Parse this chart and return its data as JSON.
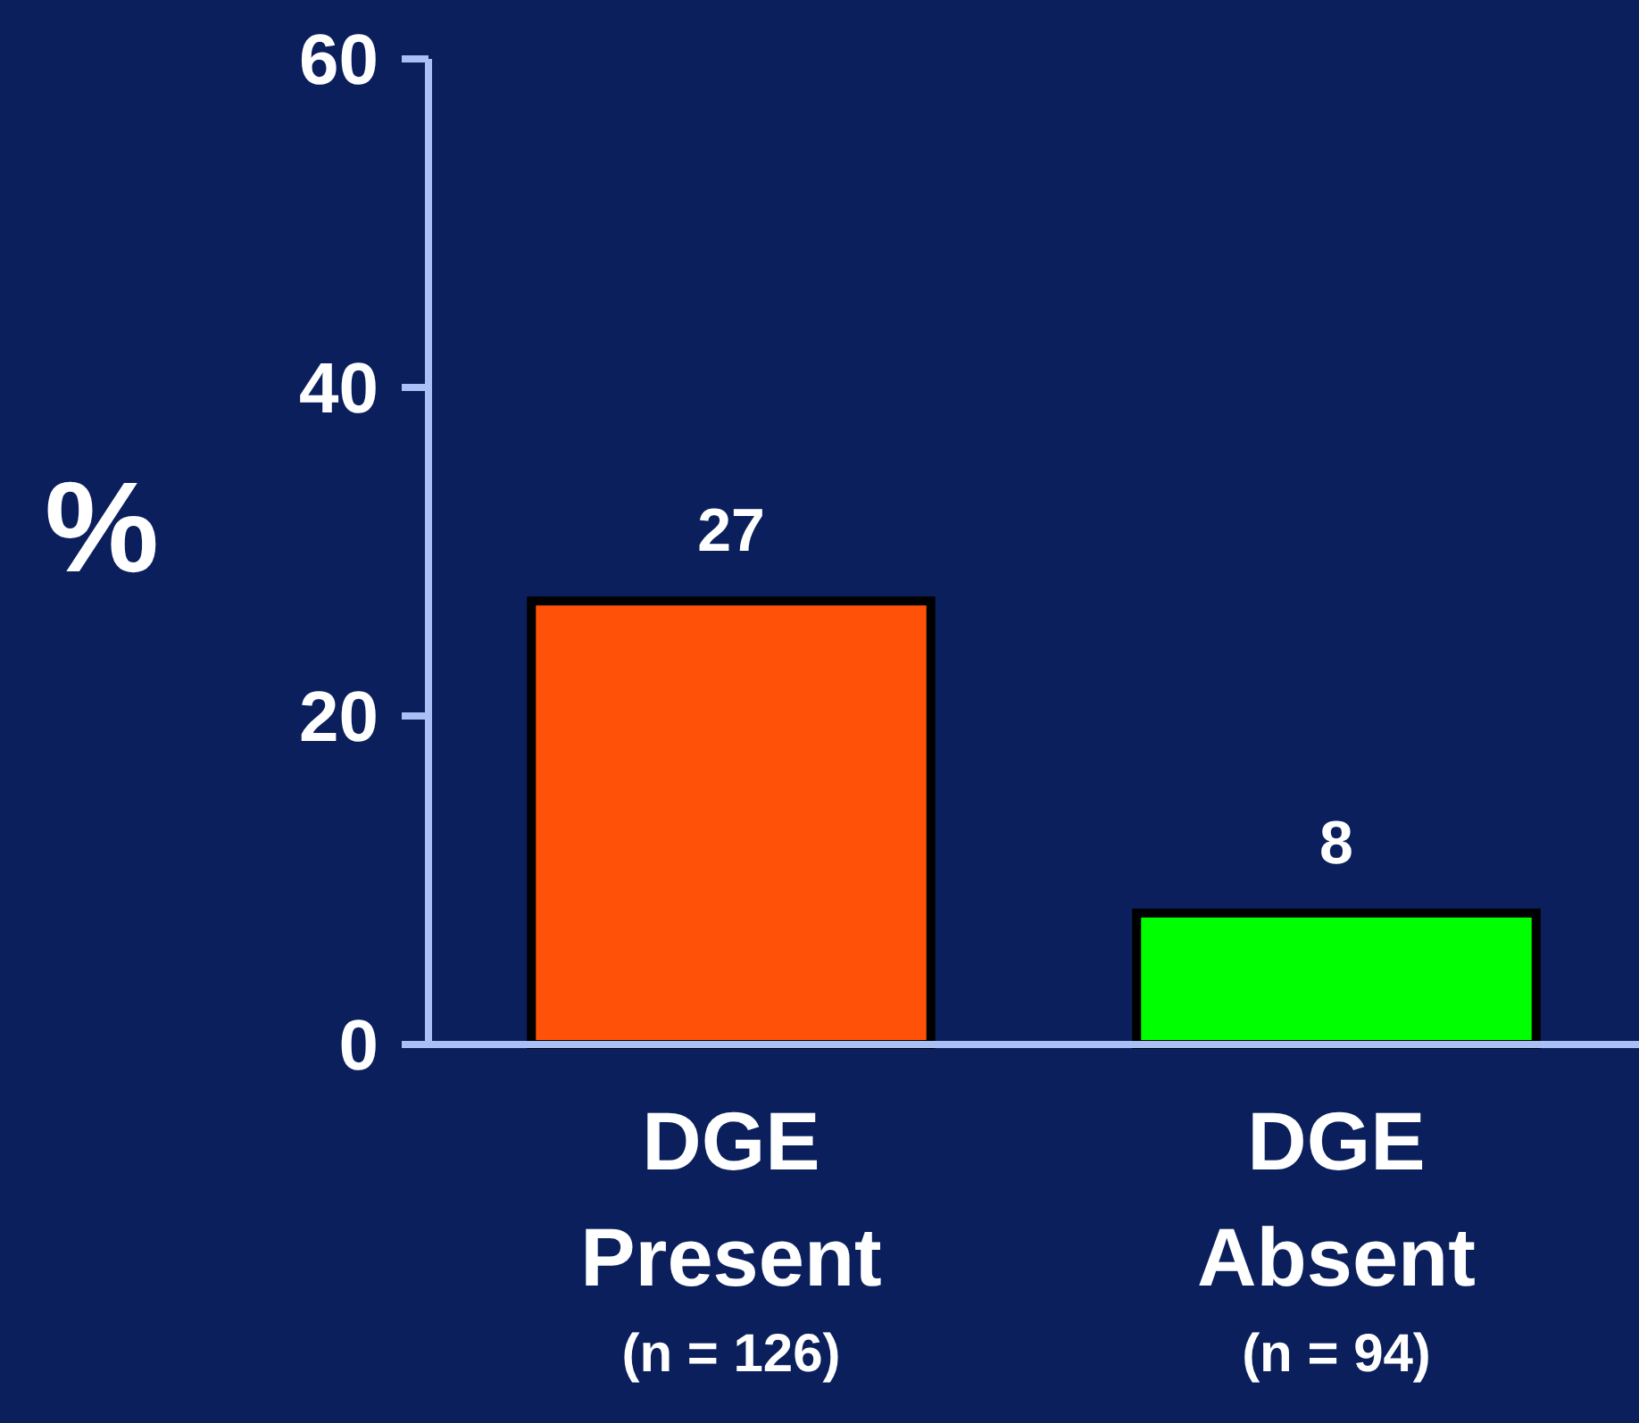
{
  "chart_data": {
    "type": "bar",
    "ylabel": "%",
    "categories": [
      "DGE\nPresent\n(n = 126)",
      "DGE\nAbsent\n(n = 94)"
    ],
    "values": [
      27,
      8
    ],
    "colors": [
      "#ff5208",
      "#00ff00"
    ],
    "ylim": [
      0,
      60
    ],
    "yticks": [
      0,
      20,
      40,
      60
    ],
    "data_labels": true
  }
}
